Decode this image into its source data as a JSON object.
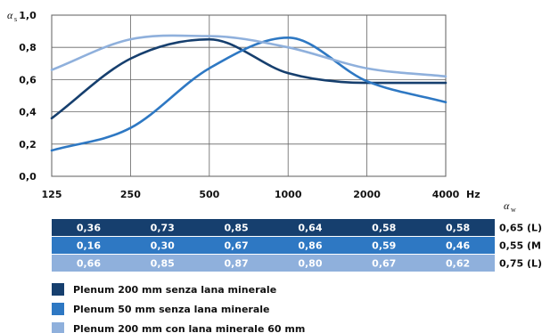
{
  "chart_data": {
    "type": "line",
    "y_symbol": "α",
    "y_symbol_sub": "s",
    "x_unit": "Hz",
    "categories": [
      "125",
      "250",
      "500",
      "1000",
      "2000",
      "4000"
    ],
    "y_ticks": [
      "0,0",
      "0,2",
      "0,4",
      "0,6",
      "0,8",
      "1,0"
    ],
    "ylim": [
      0,
      1
    ],
    "grid": true,
    "series": [
      {
        "name": "Plenum 200 mm senza lana minerale",
        "color": "#163f6e",
        "values": [
          0.36,
          0.73,
          0.85,
          0.64,
          0.58,
          0.58
        ],
        "labels": [
          "0,36",
          "0,73",
          "0,85",
          "0,64",
          "0,58",
          "0,58"
        ],
        "aw": "0,65 (L)"
      },
      {
        "name": "Plenum 50 mm senza lana minerale",
        "color": "#2e78c3",
        "values": [
          0.16,
          0.3,
          0.67,
          0.86,
          0.59,
          0.46
        ],
        "labels": [
          "0,16",
          "0,30",
          "0,67",
          "0,86",
          "0,59",
          "0,46"
        ],
        "aw": "0,55 (M)"
      },
      {
        "name": "Plenum 200 mm con lana minerale 60 mm",
        "color": "#8fb0dc",
        "values": [
          0.66,
          0.85,
          0.87,
          0.8,
          0.67,
          0.62
        ],
        "labels": [
          "0,66",
          "0,85",
          "0,87",
          "0,80",
          "0,67",
          "0,62"
        ],
        "aw": "0,75 (L)"
      }
    ],
    "aw_symbol": "α",
    "aw_symbol_sub": "w"
  }
}
